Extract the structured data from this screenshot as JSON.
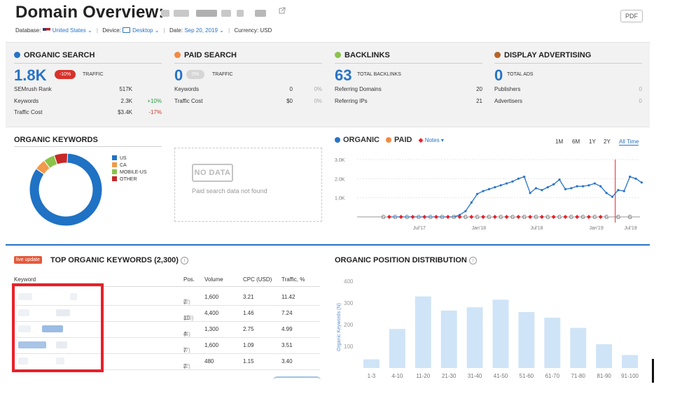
{
  "header": {
    "title": "Domain Overview:",
    "pdf_label": "PDF",
    "database_label": "Database:",
    "database_value": "United States",
    "device_label": "Device:",
    "device_value": "Desktop",
    "date_label": "Date:",
    "date_value": "Sep 20, 2019",
    "currency_label": "Currency:",
    "currency_value": "USD"
  },
  "summary": {
    "organic": {
      "title": "ORGANIC SEARCH",
      "color": "#2873c7",
      "value": "1.8K",
      "badge": "-10%",
      "label": "TRAFFIC",
      "rows": [
        {
          "k": "SEMrush Rank",
          "v": "517K",
          "d": ""
        },
        {
          "k": "Keywords",
          "v": "2.3K",
          "d": "+10%"
        },
        {
          "k": "Traffic Cost",
          "v": "$3.4K",
          "d": "-17%"
        }
      ]
    },
    "paid": {
      "title": "PAID SEARCH",
      "color": "#f28a43",
      "value": "0",
      "badge": "0%",
      "label": "TRAFFIC",
      "rows": [
        {
          "k": "Keywords",
          "v": "0",
          "d": "0%"
        },
        {
          "k": "Traffic Cost",
          "v": "$0",
          "d": "0%"
        }
      ]
    },
    "backlinks": {
      "title": "BACKLINKS",
      "color": "#8bc34a",
      "value": "63",
      "label": "TOTAL BACKLINKS",
      "rows": [
        {
          "k": "Referring Domains",
          "v": "20"
        },
        {
          "k": "Referring IPs",
          "v": "21"
        }
      ]
    },
    "display": {
      "title": "DISPLAY ADVERTISING",
      "color": "#b5652a",
      "value": "0",
      "label": "TOTAL ADS",
      "rows": [
        {
          "k": "Publishers",
          "v": "0"
        },
        {
          "k": "Advertisers",
          "v": "0"
        }
      ]
    }
  },
  "organic_keywords": {
    "title": "ORGANIC KEYWORDS",
    "legend": [
      {
        "label": "US",
        "color": "#1f72c4"
      },
      {
        "label": "CA",
        "color": "#f2994a"
      },
      {
        "label": "MOBILE-US",
        "color": "#8bc34a"
      },
      {
        "label": "OTHER",
        "color": "#c62828"
      }
    ],
    "donut": [
      {
        "label": "US",
        "value": 84
      },
      {
        "label": "CA",
        "value": 5
      },
      {
        "label": "MOBILE-US",
        "value": 5
      },
      {
        "label": "OTHER",
        "value": 6
      }
    ]
  },
  "paid_panel": {
    "badge": "NO DATA",
    "message": "Paid search data not found"
  },
  "trend_chart": {
    "legend_organic": "ORGANIC",
    "legend_paid": "PAID",
    "legend_notes": "Notes",
    "ranges": [
      "1M",
      "6M",
      "1Y",
      "2Y",
      "All Time"
    ],
    "active_range": "All Time"
  },
  "top_keywords": {
    "live_badge": "live update",
    "title": "TOP ORGANIC KEYWORDS (2,300)",
    "columns": [
      "Keyword",
      "Pos.",
      "Volume",
      "CPC (USD)",
      "Traffic, %"
    ],
    "rows": [
      {
        "pos": "2",
        "prev": "(2)",
        "volume": "1,600",
        "cpc": "3.21",
        "traffic": "11.42"
      },
      {
        "pos": "10",
        "prev": "(10)",
        "volume": "4,400",
        "cpc": "1.46",
        "traffic": "7.24"
      },
      {
        "pos": "4",
        "prev": "(4)",
        "volume": "1,300",
        "cpc": "2.75",
        "traffic": "4.99"
      },
      {
        "pos": "7",
        "prev": "(7)",
        "volume": "1,600",
        "cpc": "1.09",
        "traffic": "3.51"
      },
      {
        "pos": "2",
        "prev": "(2)",
        "volume": "480",
        "cpc": "1.15",
        "traffic": "3.40"
      }
    ]
  },
  "position_distribution": {
    "title": "ORGANIC POSITION DISTRIBUTION"
  },
  "chart_data": [
    {
      "type": "line",
      "title": "",
      "xlabel": "",
      "ylabel": "",
      "ylim": [
        0,
        3000
      ],
      "y_ticks": [
        "3.0K",
        "2.0K",
        "1.0K"
      ],
      "x_tick_labels": [
        "Jul'17",
        "Jan'18",
        "Jul'18",
        "Jan'19",
        "Jul'19"
      ],
      "series": [
        {
          "name": "ORGANIC",
          "color": "#2873c7",
          "values": [
            0,
            0,
            0,
            0,
            0,
            0,
            0,
            0,
            0,
            0,
            0,
            0,
            100,
            300,
            750,
            1200,
            1350,
            1450,
            1550,
            1650,
            1750,
            1850,
            2000,
            2100,
            1250,
            1500,
            1400,
            1550,
            1700,
            1950,
            1450,
            1500,
            1600,
            1600,
            1650,
            1750,
            1600,
            1250,
            1050,
            1400,
            1350,
            2100,
            2000,
            1800
          ],
          "points": [
            5,
            6,
            7,
            8,
            9,
            10,
            11,
            12,
            13,
            14,
            15,
            16,
            17,
            18,
            19,
            20,
            21,
            22,
            23,
            24,
            25,
            26,
            27,
            28,
            29,
            30,
            31,
            32,
            33,
            34,
            35,
            36,
            37,
            38,
            39,
            40,
            41,
            42,
            43,
            44,
            45,
            46,
            47,
            48
          ]
        },
        {
          "name": "PAID",
          "color": "#f28a43",
          "values": [
            0,
            0,
            0,
            0,
            0,
            0,
            0,
            0,
            0,
            0,
            0,
            0,
            0,
            0,
            0,
            0,
            0,
            0,
            0,
            0,
            0,
            0,
            0,
            0,
            0,
            0,
            0,
            0,
            0,
            0,
            0,
            0,
            0,
            0,
            0,
            0,
            0,
            0,
            0,
            0,
            0,
            0,
            0,
            0
          ]
        }
      ]
    },
    {
      "type": "bar",
      "title": "ORGANIC POSITION DISTRIBUTION",
      "xlabel": "",
      "ylabel": "Organic Keywords (N)",
      "ylim": [
        0,
        400
      ],
      "y_ticks": [
        400,
        300,
        200,
        100
      ],
      "categories": [
        "1-3",
        "4-10",
        "11-20",
        "21-30",
        "31-40",
        "41-50",
        "51-60",
        "61-70",
        "71-80",
        "81-90",
        "91-100"
      ],
      "values": [
        40,
        180,
        330,
        265,
        280,
        315,
        258,
        232,
        185,
        110,
        60
      ],
      "color": "#cfe4f7"
    }
  ]
}
